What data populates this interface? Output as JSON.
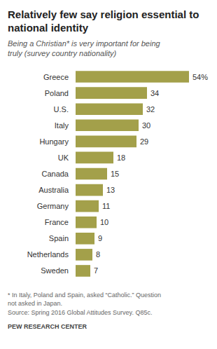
{
  "chart_data": {
    "type": "bar",
    "orientation": "horizontal",
    "title": "Relatively few say religion essential to national identity",
    "subtitle": "Being a Christian* is very important for being truly (survey country nationality)",
    "categories": [
      "Greece",
      "Poland",
      "U.S.",
      "Italy",
      "Hungary",
      "UK",
      "Canada",
      "Australia",
      "Germany",
      "France",
      "Spain",
      "Netherlands",
      "Sweden"
    ],
    "values": [
      54,
      34,
      32,
      30,
      29,
      18,
      15,
      13,
      11,
      10,
      9,
      8,
      7
    ],
    "value_labels": [
      "54%",
      "34",
      "32",
      "30",
      "29",
      "18",
      "15",
      "13",
      "11",
      "10",
      "9",
      "8",
      "7"
    ],
    "color": "#a3a04a",
    "xlim": [
      0,
      54
    ],
    "data_labels": true,
    "tick_labels": "y",
    "grid": false,
    "footnote": "* In Italy, Poland and Spain, asked “Catholic.” Question not asked in Japan.",
    "source": "Source: Spring 2016 Global Attitudes Survey. Q85c.",
    "credit": "PEW RESEARCH CENTER"
  }
}
